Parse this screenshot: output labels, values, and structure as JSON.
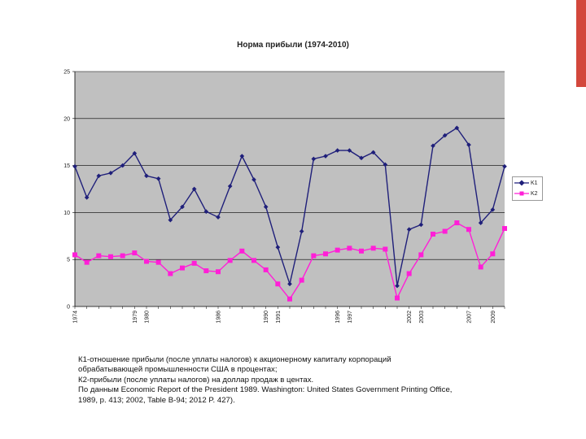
{
  "chart_data": {
    "type": "line",
    "title": "Норма прибыли (1974-2010)",
    "ylim": [
      0,
      25
    ],
    "yticks": [
      0,
      5,
      10,
      15,
      20,
      25
    ],
    "grid": true,
    "legend_position": "right",
    "x": [
      "1974",
      "1975",
      "1976",
      "1977",
      "1978",
      "1979",
      "1980",
      "1981",
      "1982",
      "1983",
      "1984",
      "1985",
      "1986",
      "1987",
      "1988",
      "1989",
      "1990",
      "1991",
      "1992",
      "1993",
      "1994",
      "1995",
      "1996",
      "1997",
      "1998",
      "1999",
      "2000",
      "2001",
      "2002",
      "2003",
      "2004",
      "2005",
      "2006",
      "2007",
      "2008",
      "2009",
      "2010"
    ],
    "xtick_labels": [
      "1974",
      "",
      "",
      "",
      "",
      "1979",
      "1980",
      "",
      "",
      "",
      "",
      "",
      "1986",
      "",
      "",
      "",
      "1990",
      "1991",
      "",
      "",
      "",
      "",
      "1996",
      "1997",
      "",
      "",
      "",
      "",
      "2002",
      "2003",
      "",
      "",
      "",
      "2007",
      "",
      "2009",
      ""
    ],
    "series": [
      {
        "name": "K1",
        "color": "#1f1f7a",
        "marker": "diamond",
        "values": [
          14.9,
          11.6,
          13.9,
          14.2,
          15.0,
          16.3,
          13.9,
          13.6,
          9.2,
          10.6,
          12.5,
          10.1,
          9.5,
          12.8,
          16.0,
          13.5,
          10.6,
          6.3,
          2.4,
          8.0,
          15.7,
          16.0,
          16.6,
          16.6,
          15.8,
          16.4,
          15.1,
          2.2,
          8.2,
          8.7,
          17.1,
          18.2,
          19.0,
          17.2,
          8.9,
          10.3,
          14.9
        ]
      },
      {
        "name": "K2",
        "color": "#ff1fd7",
        "marker": "square",
        "values": [
          5.5,
          4.7,
          5.4,
          5.3,
          5.4,
          5.7,
          4.8,
          4.7,
          3.5,
          4.1,
          4.6,
          3.8,
          3.7,
          4.9,
          5.9,
          4.9,
          3.9,
          2.4,
          0.8,
          2.8,
          5.4,
          5.6,
          6.0,
          6.2,
          5.9,
          6.2,
          6.1,
          0.9,
          3.5,
          5.5,
          7.7,
          8.0,
          8.9,
          8.2,
          4.2,
          5.6,
          8.3
        ]
      }
    ]
  },
  "caption": {
    "line1": "К1-отношение прибыли (после уплаты налогов) к акционерному капиталу корпораций",
    "line2": "обрабатывающей промышленности США в процентах;",
    "line3": "К2-прибыли (после уплаты налогов) на доллар продаж в центах.",
    "line4": "По данным Economic Report of the President 1989. Washington: United States  Government Printing Office,",
    "line5": "1989, p. 413; 2002, Table B-94; 2012 P. 427)."
  },
  "colors": {
    "plot_bg": "#c0c0c0",
    "accent_bar": "#d3473c"
  }
}
